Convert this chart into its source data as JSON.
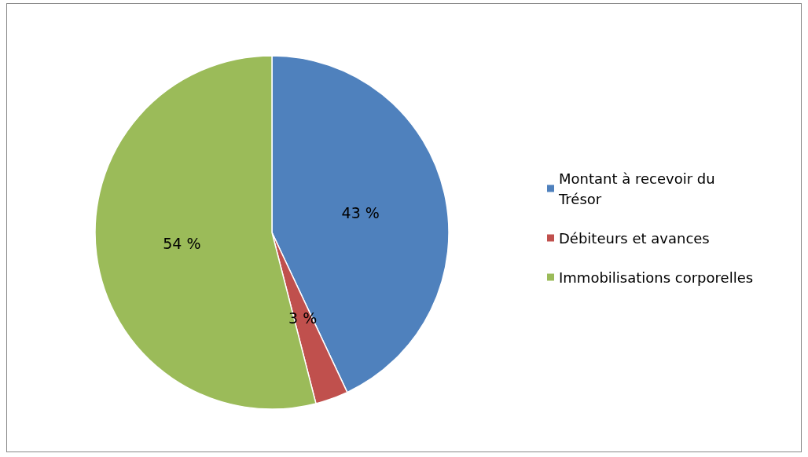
{
  "chart_data": {
    "type": "pie",
    "categories": [
      "Montant à recevoir du Trésor",
      "Débiteurs et avances",
      "Immobilisations corporelles"
    ],
    "values": [
      43,
      3,
      54
    ],
    "colors": [
      "#4f81bd",
      "#c0504d",
      "#9bbb59"
    ],
    "value_labels": [
      "43 %",
      "3 %",
      "54 %"
    ],
    "legend": "right"
  }
}
